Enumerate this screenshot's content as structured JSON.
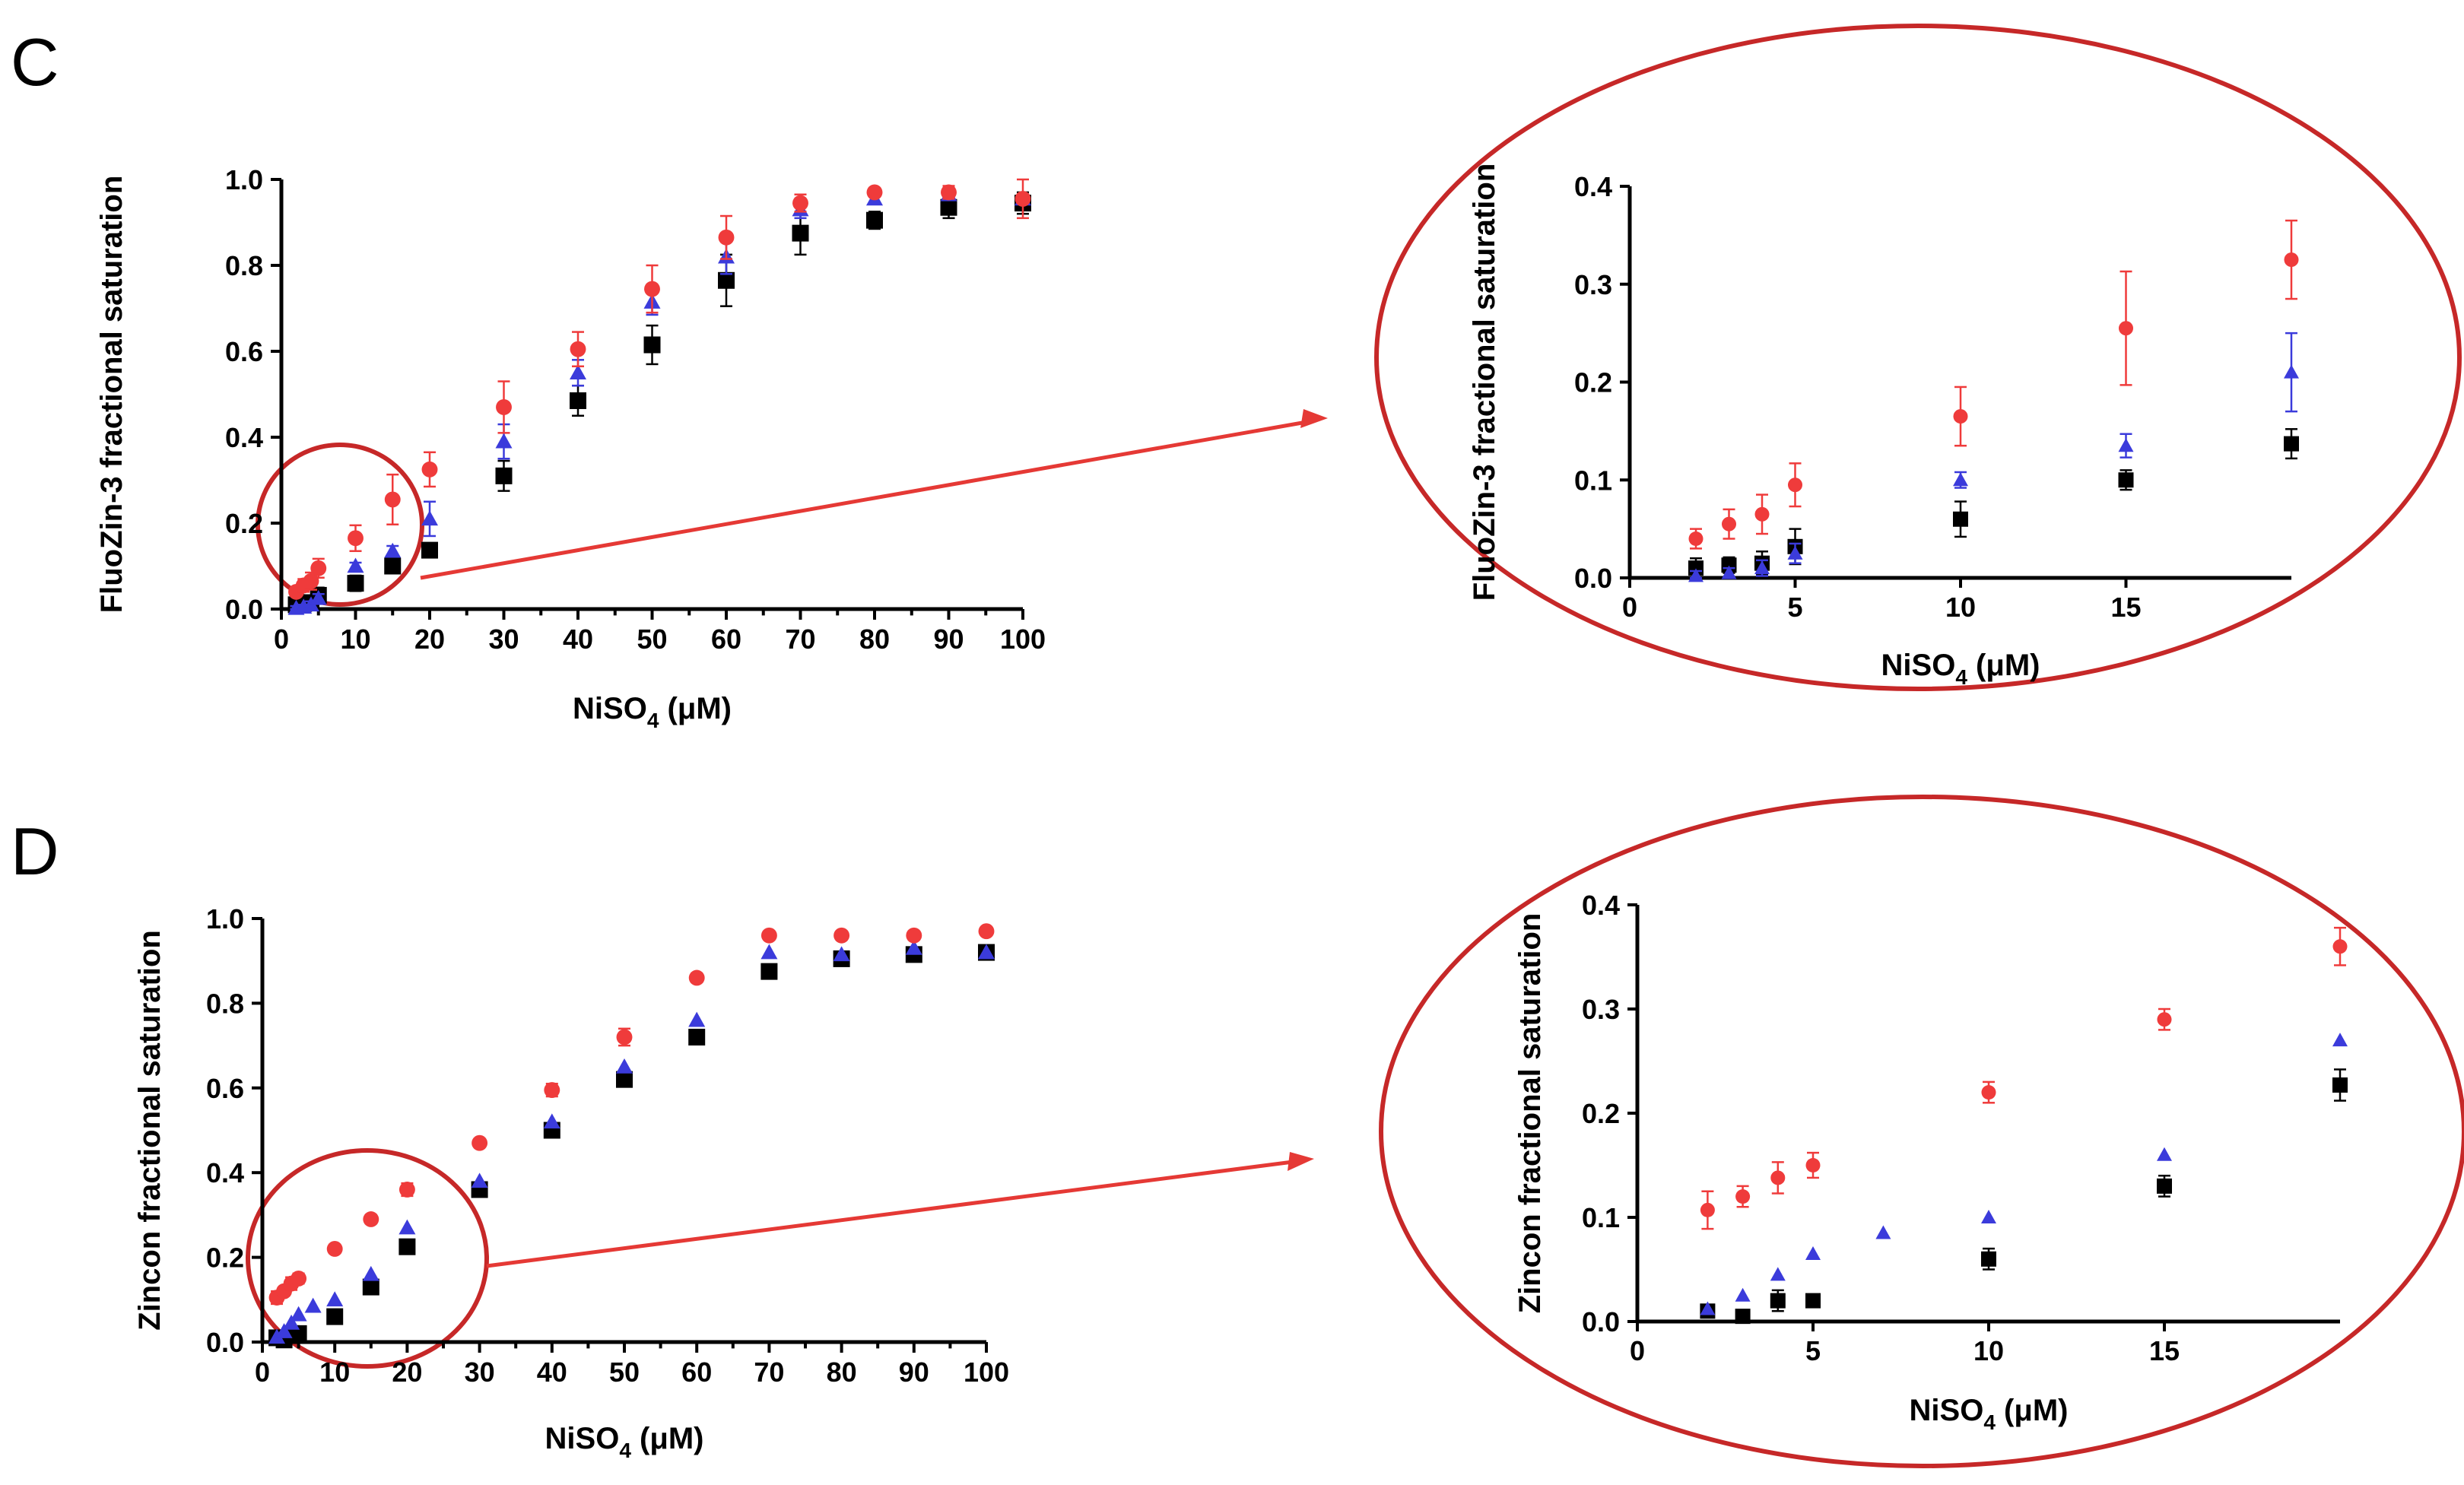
{
  "panels": [
    {
      "letter": "C"
    },
    {
      "letter": "D"
    }
  ],
  "colors": {
    "series1": "#000000",
    "series2": "#3b3bdb",
    "series3": "#ef3b3b",
    "callout": "#c62828"
  },
  "chart_data": [
    {
      "id": "C-main",
      "type": "scatter",
      "ylabel": "FluoZin-3 fractional saturation",
      "xlabel_main": "NiSO",
      "xlabel_sub": "4",
      "xlabel_unit": "(μM)",
      "xlim": [
        0,
        100
      ],
      "ylim": [
        0,
        1.0
      ],
      "xticks": [
        0,
        10,
        20,
        30,
        40,
        50,
        60,
        70,
        80,
        90,
        100
      ],
      "yticks": [
        0.0,
        0.2,
        0.4,
        0.6,
        0.8,
        1.0
      ],
      "xtick_labels": [
        "0",
        "10",
        "20",
        "30",
        "40",
        "50",
        "60",
        "70",
        "80",
        "90",
        "100"
      ],
      "ytick_labels": [
        "0.0",
        "0.2",
        "0.4",
        "0.6",
        "0.8",
        "1.0"
      ],
      "series": [
        {
          "name": "series1",
          "marker": "square",
          "x": [
            2,
            3,
            4,
            5,
            10,
            15,
            20,
            30,
            40,
            50,
            60,
            70,
            80,
            90,
            100
          ],
          "y": [
            0.01,
            0.013,
            0.015,
            0.032,
            0.06,
            0.1,
            0.137,
            0.31,
            0.485,
            0.615,
            0.765,
            0.875,
            0.905,
            0.935,
            0.945
          ],
          "err": [
            0.01,
            0.008,
            0.012,
            0.018,
            0.018,
            0.012,
            0.015,
            0.035,
            0.035,
            0.045,
            0.06,
            0.05,
            0.02,
            0.025,
            0.025
          ]
        },
        {
          "name": "series2",
          "marker": "triangle",
          "x": [
            2,
            3,
            4,
            5,
            10,
            15,
            20,
            30,
            40,
            50,
            60,
            70,
            80,
            90,
            100
          ],
          "y": [
            0.002,
            0.005,
            0.01,
            0.025,
            0.1,
            0.135,
            0.21,
            0.39,
            0.55,
            0.715,
            0.82,
            0.93,
            0.955,
            0.965,
            0.955
          ],
          "err": [
            0.005,
            0.005,
            0.008,
            0.01,
            0.008,
            0.012,
            0.04,
            0.04,
            0.03,
            0.03,
            0.04,
            0.02,
            0.01,
            0.01,
            0.01
          ]
        },
        {
          "name": "series3",
          "marker": "circle",
          "x": [
            2,
            3,
            4,
            5,
            10,
            15,
            20,
            30,
            40,
            50,
            60,
            70,
            80,
            90,
            100
          ],
          "y": [
            0.04,
            0.055,
            0.065,
            0.095,
            0.165,
            0.255,
            0.325,
            0.47,
            0.605,
            0.745,
            0.865,
            0.945,
            0.97,
            0.97,
            0.955
          ],
          "err": [
            0.01,
            0.015,
            0.02,
            0.022,
            0.03,
            0.058,
            0.04,
            0.06,
            0.04,
            0.055,
            0.05,
            0.02,
            0.01,
            0.015,
            0.045
          ]
        }
      ]
    },
    {
      "id": "C-inset",
      "type": "scatter",
      "ylabel": "FluoZin-3 fractional saturation",
      "xlabel_main": "NiSO",
      "xlabel_sub": "4",
      "xlabel_unit": "(μM)",
      "xlim": [
        0,
        20
      ],
      "ylim": [
        0,
        0.4
      ],
      "xticks": [
        0,
        5,
        10,
        15
      ],
      "yticks": [
        0.0,
        0.1,
        0.2,
        0.3,
        0.4
      ],
      "xtick_labels": [
        "0",
        "5",
        "10",
        "15"
      ],
      "ytick_labels": [
        "0.0",
        "0.1",
        "0.2",
        "0.3",
        "0.4"
      ],
      "series": [
        {
          "name": "series1",
          "marker": "square",
          "x": [
            2,
            3,
            4,
            5,
            10,
            15,
            20
          ],
          "y": [
            0.01,
            0.013,
            0.015,
            0.032,
            0.06,
            0.1,
            0.137
          ],
          "err": [
            0.01,
            0.008,
            0.012,
            0.018,
            0.018,
            0.01,
            0.015
          ]
        },
        {
          "name": "series2",
          "marker": "triangle",
          "x": [
            2,
            3,
            4,
            5,
            10,
            15,
            20
          ],
          "y": [
            0.002,
            0.005,
            0.01,
            0.025,
            0.1,
            0.135,
            0.21
          ],
          "err": [
            0.005,
            0.005,
            0.008,
            0.01,
            0.008,
            0.012,
            0.04
          ]
        },
        {
          "name": "series3",
          "marker": "circle",
          "x": [
            2,
            3,
            4,
            5,
            10,
            15,
            20
          ],
          "y": [
            0.04,
            0.055,
            0.065,
            0.095,
            0.165,
            0.255,
            0.325
          ],
          "err": [
            0.01,
            0.015,
            0.02,
            0.022,
            0.03,
            0.058,
            0.04
          ]
        }
      ]
    },
    {
      "id": "D-main",
      "type": "scatter",
      "ylabel": "Zincon fractional saturation",
      "xlabel_main": "NiSO",
      "xlabel_sub": "4",
      "xlabel_unit": "(μM)",
      "xlim": [
        0,
        100
      ],
      "ylim": [
        0,
        1.0
      ],
      "xticks": [
        0,
        10,
        20,
        30,
        40,
        50,
        60,
        70,
        80,
        90,
        100
      ],
      "yticks": [
        0.0,
        0.2,
        0.4,
        0.6,
        0.8,
        1.0
      ],
      "xtick_labels": [
        "0",
        "10",
        "20",
        "30",
        "40",
        "50",
        "60",
        "70",
        "80",
        "90",
        "100"
      ],
      "ytick_labels": [
        "0.0",
        "0.2",
        "0.4",
        "0.6",
        "0.8",
        "1.0"
      ],
      "series": [
        {
          "name": "series1",
          "marker": "square",
          "x": [
            2,
            3,
            4,
            5,
            10,
            15,
            20,
            30,
            40,
            50,
            60,
            70,
            80,
            90,
            100
          ],
          "y": [
            0.01,
            0.005,
            0.02,
            0.02,
            0.06,
            0.13,
            0.225,
            0.36,
            0.5,
            0.62,
            0.72,
            0.875,
            0.905,
            0.915,
            0.92
          ],
          "err": [
            0.005,
            0.005,
            0.01,
            0.005,
            0.01,
            0.01,
            0.012,
            0.01,
            0.01,
            0.012,
            0.01,
            0.01,
            0.012,
            0.01,
            0.01
          ]
        },
        {
          "name": "series2",
          "marker": "triangle",
          "x": [
            2,
            3,
            4,
            5,
            7,
            10,
            15,
            20,
            30,
            40,
            50,
            60,
            70,
            80,
            90,
            100
          ],
          "y": [
            0.012,
            0.025,
            0.045,
            0.065,
            0.085,
            0.1,
            0.16,
            0.27,
            0.38,
            0.52,
            0.65,
            0.76,
            0.92,
            0.915,
            0.93,
            0.92
          ],
          "err": [
            0,
            0,
            0,
            0,
            0,
            0,
            0,
            0,
            0,
            0,
            0,
            0,
            0,
            0,
            0,
            0
          ]
        },
        {
          "name": "series3",
          "marker": "circle",
          "x": [
            2,
            3,
            4,
            5,
            10,
            15,
            20,
            30,
            40,
            50,
            60,
            70,
            80,
            90,
            100
          ],
          "y": [
            0.105,
            0.12,
            0.138,
            0.15,
            0.22,
            0.29,
            0.36,
            0.47,
            0.595,
            0.72,
            0.86,
            0.96,
            0.96,
            0.96,
            0.97
          ],
          "err": [
            0.015,
            0.01,
            0.015,
            0.012,
            0.01,
            0.01,
            0.015,
            0.01,
            0.015,
            0.02,
            0.01,
            0.01,
            0.01,
            0.01,
            0.01
          ]
        }
      ]
    },
    {
      "id": "D-inset",
      "type": "scatter",
      "ylabel": "Zincon fractional saturation",
      "xlabel_main": "NiSO",
      "xlabel_sub": "4",
      "xlabel_unit": "(μM)",
      "xlim": [
        0,
        20
      ],
      "ylim": [
        0,
        0.4
      ],
      "xticks": [
        0,
        5,
        10,
        15
      ],
      "yticks": [
        0.0,
        0.1,
        0.2,
        0.3,
        0.4
      ],
      "xtick_labels": [
        "0",
        "5",
        "10",
        "15"
      ],
      "ytick_labels": [
        "0.0",
        "0.1",
        "0.2",
        "0.3",
        "0.4"
      ],
      "series": [
        {
          "name": "series1",
          "marker": "square",
          "x": [
            2,
            3,
            4,
            5,
            10,
            15,
            20
          ],
          "y": [
            0.01,
            0.005,
            0.02,
            0.02,
            0.06,
            0.13,
            0.227
          ],
          "err": [
            0.004,
            0.004,
            0.01,
            0.004,
            0.01,
            0.01,
            0.015
          ]
        },
        {
          "name": "series2",
          "marker": "triangle",
          "x": [
            2,
            3,
            4,
            5,
            7,
            10,
            15,
            20
          ],
          "y": [
            0.012,
            0.025,
            0.045,
            0.065,
            0.085,
            0.1,
            0.16,
            0.27
          ],
          "err": [
            0,
            0,
            0,
            0,
            0,
            0,
            0,
            0
          ]
        },
        {
          "name": "series3",
          "marker": "circle",
          "x": [
            2,
            3,
            4,
            5,
            10,
            15,
            20
          ],
          "y": [
            0.107,
            0.12,
            0.138,
            0.15,
            0.22,
            0.29,
            0.36
          ],
          "err": [
            0.018,
            0.01,
            0.015,
            0.012,
            0.01,
            0.01,
            0.018
          ]
        }
      ]
    }
  ]
}
